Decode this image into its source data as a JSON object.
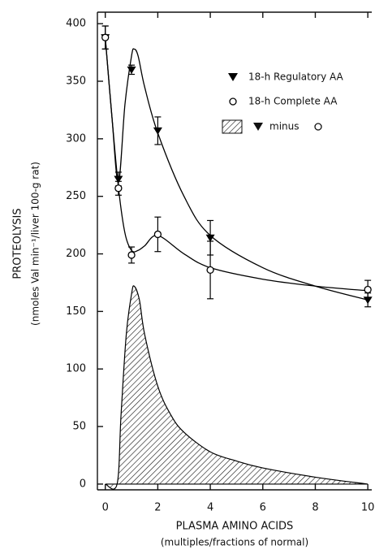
{
  "chart_data": {
    "type": "line",
    "ylabel": [
      "PROTEOLYSIS",
      "(nmoles Val min⁻¹/liver 100-g rat)"
    ],
    "xlabel": [
      "PLASMA AMINO ACIDS",
      "(multiples/fractions of normal)"
    ],
    "xlim": [
      -0.3,
      10.15
    ],
    "xticks": [
      0,
      2,
      4,
      6,
      8,
      10
    ],
    "ylim": [
      -5,
      410
    ],
    "yticks": [
      0,
      50,
      100,
      150,
      200,
      250,
      300,
      350,
      400
    ],
    "series": [
      {
        "name": "18-h Regulatory AA",
        "marker": "triangle-down",
        "color": "#000000",
        "x": [
          0,
          0.5,
          1,
          2,
          4,
          10
        ],
        "values": [
          388,
          265,
          360,
          307,
          214,
          160
        ],
        "errors": [
          10,
          6,
          4,
          12,
          15,
          6
        ],
        "curve_x": [
          0,
          0.25,
          0.5,
          0.75,
          1,
          1.1,
          1.25,
          1.5,
          2,
          3,
          4,
          6,
          8,
          10
        ],
        "curve_values": [
          388,
          320,
          262,
          330,
          372,
          378,
          372,
          345,
          305,
          250,
          216,
          188,
          172,
          160
        ]
      },
      {
        "name": "18-h Complete AA",
        "marker": "circle",
        "color": "#000000",
        "x": [
          0,
          0.5,
          1,
          2,
          4,
          10
        ],
        "values": [
          388,
          257,
          199,
          217,
          186,
          169
        ],
        "errors": [
          10,
          6,
          7,
          15,
          25,
          8
        ],
        "curve_x": [
          0,
          0.25,
          0.5,
          0.75,
          1,
          1.25,
          1.5,
          2,
          3,
          4,
          6,
          8,
          10
        ],
        "curve_values": [
          388,
          320,
          258,
          218,
          203,
          203,
          207,
          216,
          200,
          188,
          178,
          172,
          168
        ]
      },
      {
        "name": "minus",
        "marker": "hatch",
        "color": "#000000",
        "x": [
          0,
          0.45,
          0.6,
          0.8,
          1,
          1.1,
          1.3,
          1.5,
          2,
          2.5,
          3,
          4,
          5,
          6,
          8,
          10
        ],
        "values": [
          0,
          0,
          60,
          130,
          165,
          172,
          160,
          130,
          85,
          60,
          45,
          28,
          20,
          14,
          6,
          0
        ]
      }
    ]
  }
}
